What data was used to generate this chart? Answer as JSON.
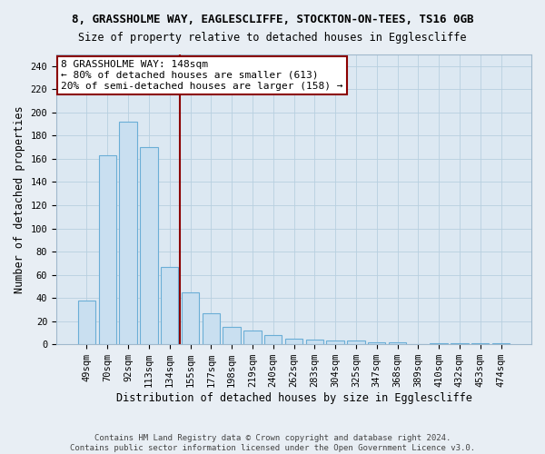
{
  "title": "8, GRASSHOLME WAY, EAGLESCLIFFE, STOCKTON-ON-TEES, TS16 0GB",
  "subtitle": "Size of property relative to detached houses in Egglescliffe",
  "xlabel": "Distribution of detached houses by size in Egglescliffe",
  "ylabel": "Number of detached properties",
  "categories": [
    "49sqm",
    "70sqm",
    "92sqm",
    "113sqm",
    "134sqm",
    "155sqm",
    "177sqm",
    "198sqm",
    "219sqm",
    "240sqm",
    "262sqm",
    "283sqm",
    "304sqm",
    "325sqm",
    "347sqm",
    "368sqm",
    "389sqm",
    "410sqm",
    "432sqm",
    "453sqm",
    "474sqm"
  ],
  "values": [
    38,
    163,
    192,
    170,
    67,
    45,
    27,
    15,
    12,
    8,
    5,
    4,
    3,
    3,
    2,
    2,
    0,
    1,
    1,
    1,
    1
  ],
  "bar_color": "#c9dff0",
  "bar_edge_color": "#6baed6",
  "vline_index": 4.5,
  "vline_color": "#8b0000",
  "annotation_text": "8 GRASSHOLME WAY: 148sqm\n← 80% of detached houses are smaller (613)\n20% of semi-detached houses are larger (158) →",
  "annotation_box_color": "#ffffff",
  "annotation_box_edge": "#8b0000",
  "footer": "Contains HM Land Registry data © Crown copyright and database right 2024.\nContains public sector information licensed under the Open Government Licence v3.0.",
  "ylim": [
    0,
    250
  ],
  "yticks": [
    0,
    20,
    40,
    60,
    80,
    100,
    120,
    140,
    160,
    180,
    200,
    220,
    240
  ],
  "fig_bg_color": "#e8eef4",
  "plot_bg_color": "#dce8f2",
  "title_fontsize": 9.0,
  "label_fontsize": 8.5,
  "tick_fontsize": 7.5,
  "footer_fontsize": 6.5,
  "annotation_fontsize": 8.0
}
